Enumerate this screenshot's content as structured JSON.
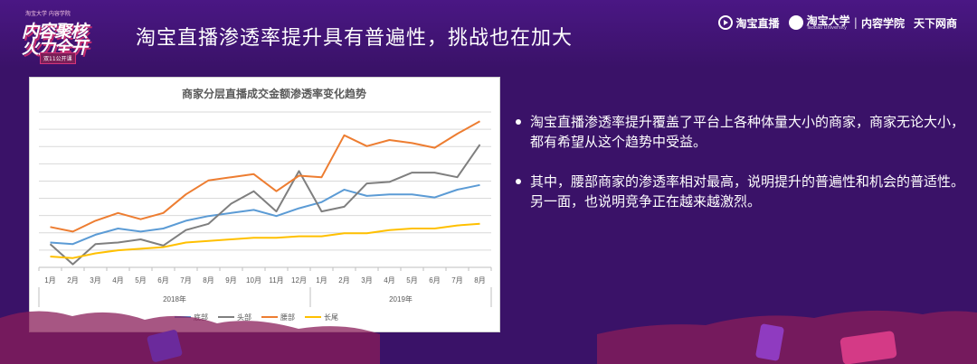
{
  "header": {
    "logo_tiny": "淘宝大学 内容学院",
    "logo_line1": "内容聚核",
    "logo_line2": "火力全开",
    "logo_tag": "双11公开课",
    "title": "淘宝直播渗透率提升具有普遍性，挑战也在加大",
    "brand_taobao_live": "淘宝直播",
    "brand_university": "淘宝大学",
    "brand_university_en": "Taobao University",
    "brand_sep": "|",
    "brand_content_college": "内容学院",
    "brand_tianxia": "天下网商"
  },
  "chart_data": {
    "type": "line",
    "title": "商家分层直播成交金额渗透率变化趋势",
    "categories": [
      "1月",
      "2月",
      "3月",
      "4月",
      "5月",
      "6月",
      "7月",
      "8月",
      "9月",
      "10月",
      "11月",
      "12月",
      "1月",
      "2月",
      "3月",
      "4月",
      "5月",
      "6月",
      "7月",
      "8月"
    ],
    "year_groups": [
      {
        "label": "2018年",
        "count": 12
      },
      {
        "label": "2019年",
        "count": 8
      }
    ],
    "ylim": [
      0,
      10
    ],
    "y_gridlines": 9,
    "y_tick_labels_shown": false,
    "grid": true,
    "legend": "bottom",
    "series": [
      {
        "name": "底部",
        "color": "#5b9bd5",
        "values": [
          1.6,
          1.5,
          2.1,
          2.5,
          2.3,
          2.5,
          3.0,
          3.3,
          3.5,
          3.7,
          3.3,
          3.8,
          4.2,
          5.0,
          4.6,
          4.7,
          4.7,
          4.5,
          5.0,
          5.3
        ]
      },
      {
        "name": "头部",
        "color": "#7f7f7f",
        "values": [
          1.5,
          0.2,
          1.5,
          1.6,
          1.8,
          1.4,
          2.4,
          2.8,
          4.1,
          4.9,
          3.6,
          6.2,
          3.6,
          3.9,
          5.4,
          5.5,
          6.1,
          6.1,
          5.8,
          7.9
        ]
      },
      {
        "name": "腰部",
        "color": "#ed7d31",
        "values": [
          2.6,
          2.3,
          3.0,
          3.5,
          3.1,
          3.5,
          4.7,
          5.6,
          5.8,
          6.0,
          4.9,
          5.9,
          5.8,
          8.5,
          7.8,
          8.2,
          8.0,
          7.7,
          8.6,
          9.4
        ]
      },
      {
        "name": "长尾",
        "color": "#ffc000",
        "values": [
          0.7,
          0.6,
          0.9,
          1.1,
          1.2,
          1.3,
          1.6,
          1.7,
          1.8,
          1.9,
          1.9,
          2.0,
          2.0,
          2.2,
          2.2,
          2.4,
          2.5,
          2.5,
          2.7,
          2.8
        ]
      }
    ]
  },
  "bullets": [
    "淘宝直播渗透率提升覆盖了平台上各种体量大小的商家，商家无论大小，都有希望从这个趋势中受益。",
    "其中，腰部商家的渗透率相对最高，说明提升的普遍性和机会的普适性。另一面，也说明竞争正在越来越激烈。"
  ]
}
